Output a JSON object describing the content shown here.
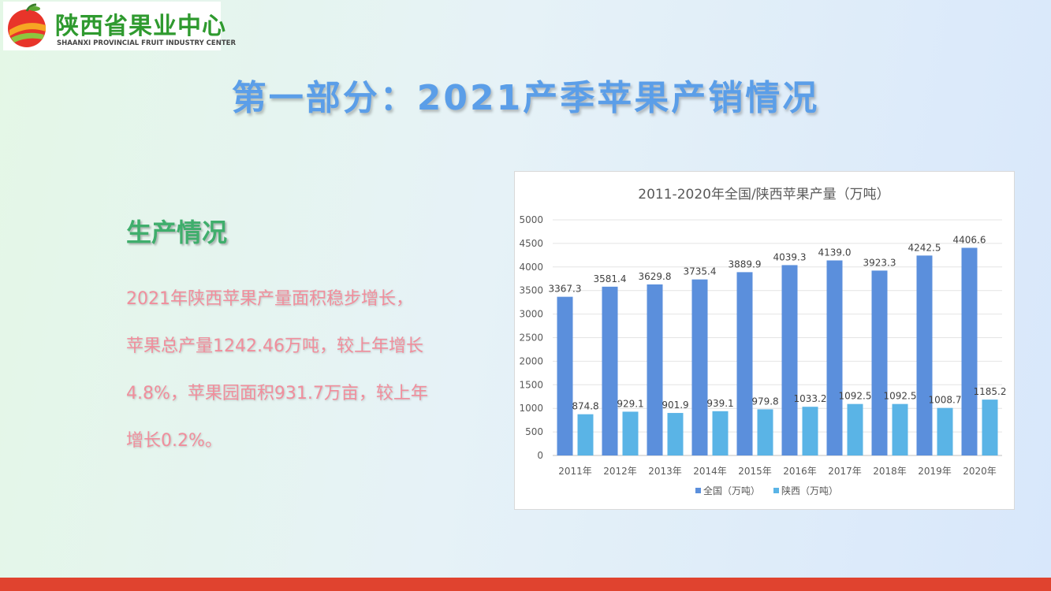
{
  "logo": {
    "name_cn": "陕西省果业中心",
    "name_en": "SHAANXI PROVINCIAL FRUIT INDUSTRY CENTER"
  },
  "main_title": "第一部分：2021产季苹果产销情况",
  "section": {
    "title": "生产情况",
    "lines": [
      "2021年陕西苹果产量面积稳步增长，",
      "苹果总产量1242.46万吨，较上年增长",
      "4.8%，苹果园面积931.7万亩，较上年",
      "增长0.2%。"
    ]
  },
  "colors": {
    "national": "#5b8fdc",
    "shaanxi": "#5ab4e6",
    "title": "#5b9ee8",
    "section": "#3fae6c",
    "text": "#f08e9c",
    "bar": "#e0432f"
  },
  "chart_data": {
    "type": "bar",
    "title": "2011-2020年全国/陕西苹果产量（万吨）",
    "categories": [
      "2011年",
      "2012年",
      "2013年",
      "2014年",
      "2015年",
      "2016年",
      "2017年",
      "2018年",
      "2019年",
      "2020年"
    ],
    "series": [
      {
        "name": "全国（万吨）",
        "values": [
          3367.3,
          3581.4,
          3629.8,
          3735.4,
          3889.9,
          4039.3,
          4139.0,
          3923.3,
          4242.5,
          4406.6
        ]
      },
      {
        "name": "陕西（万吨）",
        "values": [
          874.8,
          929.1,
          901.9,
          939.1,
          979.8,
          1033.2,
          1092.5,
          1092.5,
          1008.7,
          1185.2
        ]
      }
    ],
    "ylim": [
      0,
      5000
    ],
    "yticks": [
      0,
      500,
      1000,
      1500,
      2000,
      2500,
      3000,
      3500,
      4000,
      4500,
      5000
    ],
    "grid": true,
    "legend": "bottom"
  }
}
